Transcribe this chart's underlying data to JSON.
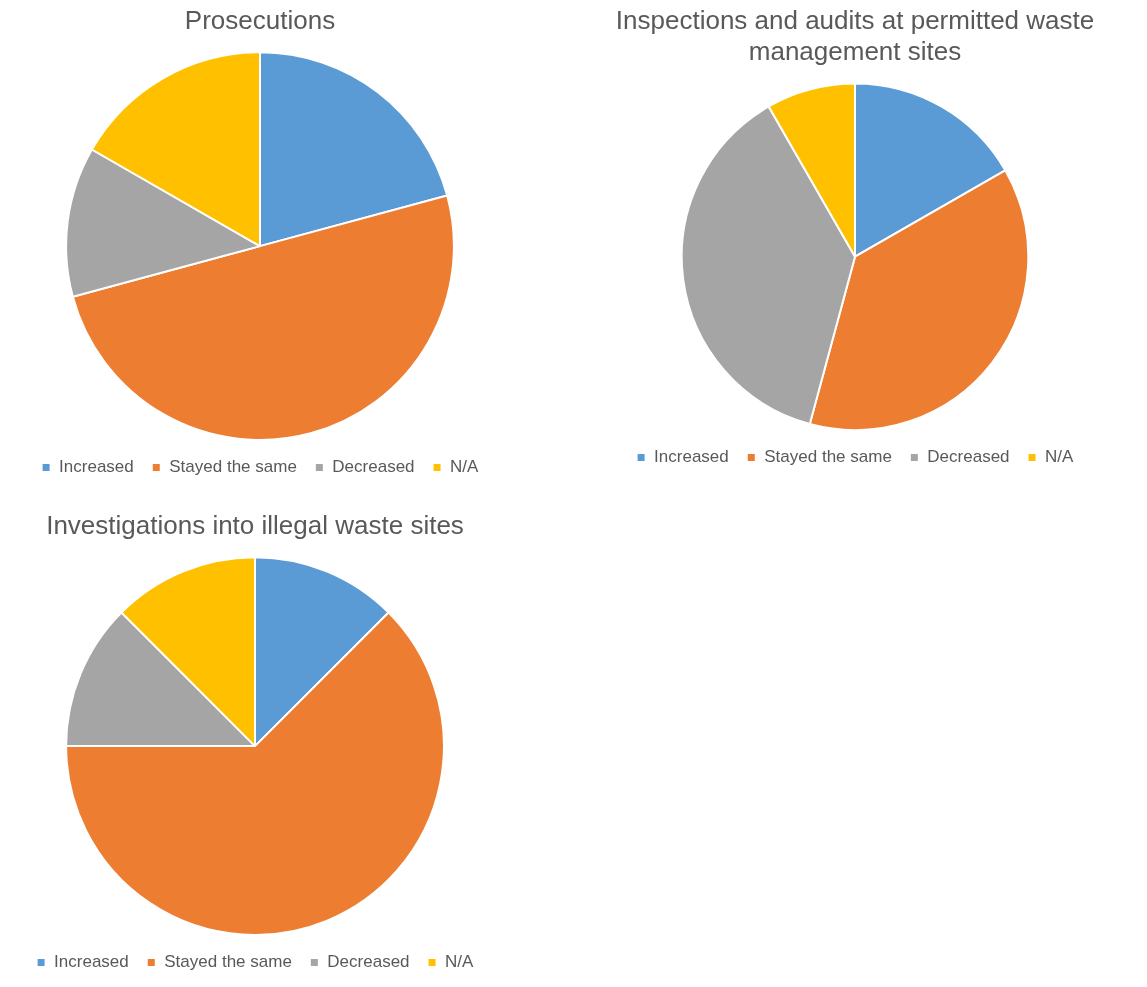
{
  "chart_data": [
    {
      "type": "pie",
      "title": "Prosecutions",
      "categories": [
        "Increased",
        "Stayed the same",
        "Decreased",
        "N/A"
      ],
      "values": [
        20.8,
        50,
        12.5,
        16.7
      ],
      "colors": [
        "#5b9bd5",
        "#ed7d31",
        "#a5a5a5",
        "#ffc000"
      ],
      "legend": "bottom"
    },
    {
      "type": "pie",
      "title": "Inspections and audits at permitted waste management sites",
      "categories": [
        "Increased",
        "Stayed the same",
        "Decreased",
        "N/A"
      ],
      "values": [
        16.7,
        37.5,
        37.5,
        8.3
      ],
      "colors": [
        "#5b9bd5",
        "#ed7d31",
        "#a5a5a5",
        "#ffc000"
      ],
      "legend": "bottom"
    },
    {
      "type": "pie",
      "title": "Investigations into illegal waste sites",
      "categories": [
        "Increased",
        "Stayed the same",
        "Decreased",
        "N/A"
      ],
      "values": [
        12.5,
        62.5,
        12.5,
        12.5
      ],
      "colors": [
        "#5b9bd5",
        "#ed7d31",
        "#a5a5a5",
        "#ffc000"
      ],
      "legend": "bottom"
    }
  ]
}
